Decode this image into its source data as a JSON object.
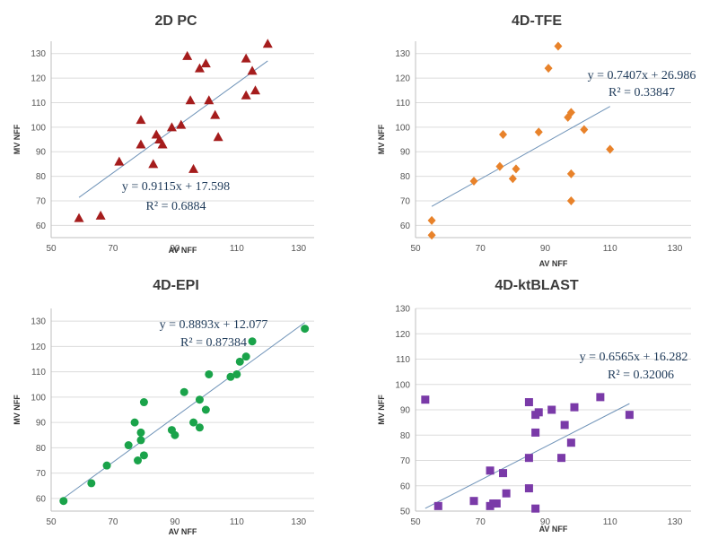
{
  "chart_data": [
    {
      "type": "scatter",
      "title": "2D PC",
      "xlabel": "AV NFF",
      "ylabel": "MV NFF",
      "xlim": [
        50,
        135
      ],
      "ylim": [
        55,
        135
      ],
      "xticks": [
        50,
        70,
        90,
        110,
        130
      ],
      "yticks": [
        60,
        70,
        80,
        90,
        100,
        110,
        120,
        130
      ],
      "marker": "triangle",
      "color": "#a51c1c",
      "x": [
        59,
        66,
        72,
        79,
        79,
        83,
        84,
        85,
        86,
        89,
        92,
        94,
        95,
        96,
        98,
        100,
        101,
        103,
        104,
        113,
        113,
        115,
        116,
        120
      ],
      "y": [
        63,
        64,
        86,
        103,
        93,
        85,
        97,
        95,
        93,
        100,
        101,
        129,
        111,
        83,
        124,
        126,
        111,
        105,
        96,
        128,
        113,
        123,
        115,
        134
      ],
      "trendline": {
        "slope": 0.9115,
        "intercept": 17.598,
        "x_range": [
          59,
          120
        ]
      },
      "equation": "y = 0.9115x + 17.598",
      "r2": "R² = 0.6884"
    },
    {
      "type": "scatter",
      "title": "4D-TFE",
      "xlabel": "AV NFF",
      "ylabel": "MV NFF",
      "xlim": [
        50,
        135
      ],
      "ylim": [
        55,
        135
      ],
      "xticks": [
        50,
        70,
        90,
        110,
        130
      ],
      "yticks": [
        60,
        70,
        80,
        90,
        100,
        110,
        120,
        130
      ],
      "marker": "diamond",
      "color": "#e8822a",
      "x": [
        55,
        55,
        68,
        76,
        77,
        80,
        81,
        88,
        91,
        94,
        97,
        98,
        98,
        98,
        102,
        110
      ],
      "y": [
        62,
        56,
        78,
        84,
        97,
        79,
        83,
        98,
        124,
        133,
        104,
        106,
        81,
        70,
        99,
        91
      ],
      "trendline": {
        "slope": 0.7407,
        "intercept": 26.986,
        "x_range": [
          55,
          110
        ]
      },
      "equation": "y = 0.7407x + 26.986",
      "r2": "R² = 0.33847"
    },
    {
      "type": "scatter",
      "title": "4D-EPI",
      "xlabel": "AV NFF",
      "ylabel": "MV NFF",
      "xlim": [
        50,
        135
      ],
      "ylim": [
        55,
        135
      ],
      "xticks": [
        50,
        70,
        90,
        110,
        130
      ],
      "yticks": [
        60,
        70,
        80,
        90,
        100,
        110,
        120,
        130
      ],
      "marker": "circle",
      "color": "#1aa34a",
      "x": [
        54,
        63,
        68,
        75,
        77,
        78,
        79,
        79,
        80,
        80,
        89,
        90,
        93,
        96,
        98,
        98,
        100,
        101,
        108,
        110,
        111,
        113,
        115,
        132
      ],
      "y": [
        59,
        66,
        73,
        81,
        90,
        75,
        86,
        83,
        98,
        77,
        87,
        85,
        102,
        90,
        99,
        88,
        95,
        109,
        108,
        109,
        114,
        116,
        122,
        127
      ],
      "trendline": {
        "slope": 0.8893,
        "intercept": 12.077,
        "x_range": [
          54,
          132
        ]
      },
      "equation": "y = 0.8893x + 12.077",
      "r2": "R² = 0.87384"
    },
    {
      "type": "scatter",
      "title": "4D-ktBLAST",
      "xlabel": "AV NFF",
      "ylabel": "MV NFF",
      "xlim": [
        50,
        135
      ],
      "ylim": [
        50,
        130
      ],
      "xticks": [
        50,
        70,
        90,
        110,
        130
      ],
      "yticks": [
        50,
        60,
        70,
        80,
        90,
        100,
        110,
        120,
        130
      ],
      "marker": "square",
      "color": "#7a3aa8",
      "x": [
        53,
        57,
        68,
        73,
        73,
        74,
        75,
        77,
        78,
        85,
        85,
        85,
        87,
        87,
        87,
        88,
        92,
        95,
        96,
        98,
        99,
        107,
        116
      ],
      "y": [
        94,
        52,
        54,
        66,
        52,
        53,
        53,
        65,
        57,
        93,
        71,
        59,
        51,
        81,
        88,
        89,
        90,
        71,
        84,
        77,
        91,
        95,
        88
      ],
      "trendline": {
        "slope": 0.6565,
        "intercept": 16.282,
        "x_range": [
          53,
          116
        ]
      },
      "equation": "y = 0.6565x + 16.282",
      "r2": "R² = 0.32006"
    }
  ]
}
